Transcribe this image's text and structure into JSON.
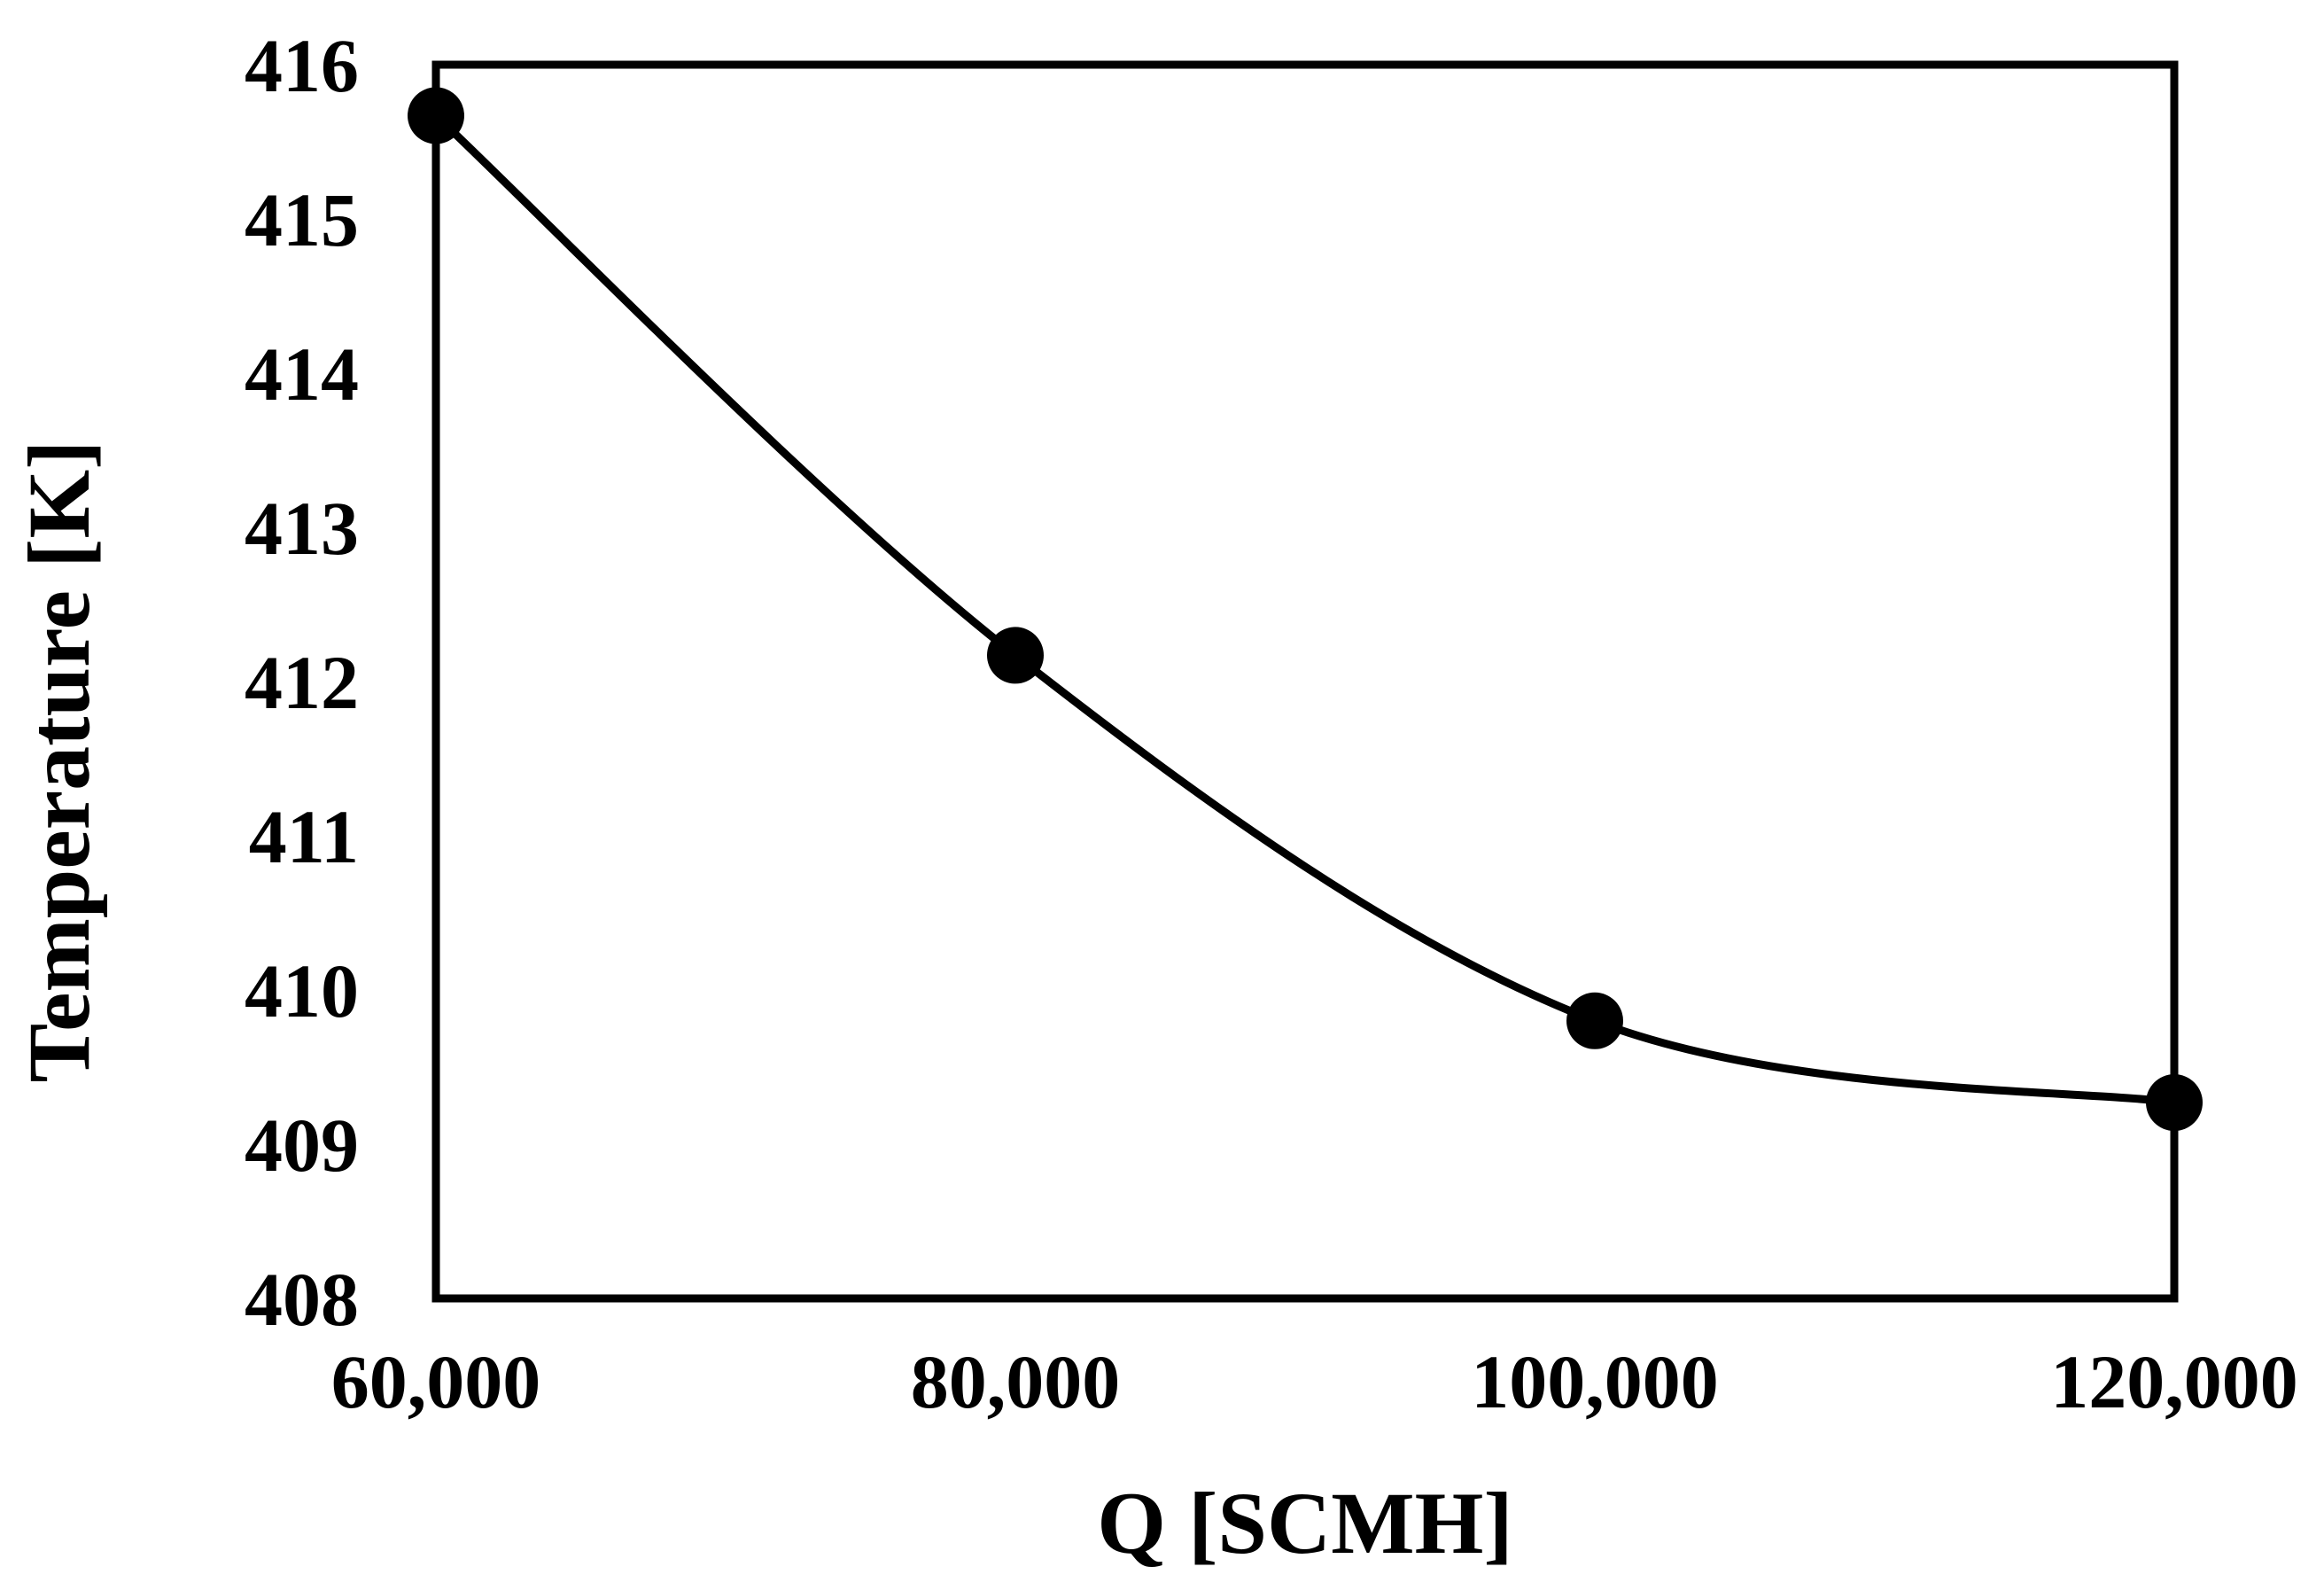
{
  "chart_data": {
    "type": "scatter",
    "title": "",
    "xlabel": "Q [SCMH]",
    "ylabel": "Temperature [K]",
    "xlim": [
      60000,
      120000
    ],
    "ylim": [
      408,
      416
    ],
    "x_ticks": [
      60000,
      80000,
      100000,
      120000
    ],
    "x_tick_labels": [
      "60,000",
      "80,000",
      "100,000",
      "120,000"
    ],
    "y_ticks": [
      408,
      409,
      410,
      411,
      412,
      413,
      414,
      415,
      416
    ],
    "y_tick_labels": [
      "408",
      "409",
      "410",
      "411",
      "412",
      "413",
      "414",
      "415",
      "416"
    ],
    "grid": false,
    "legend": "none",
    "line_style": "smooth",
    "series": [
      {
        "color": "#000000",
        "marker": "circle",
        "x": [
          60000,
          80000,
          100000,
          120000
        ],
        "y": [
          415.67,
          412.17,
          409.8,
          409.27
        ]
      }
    ]
  }
}
